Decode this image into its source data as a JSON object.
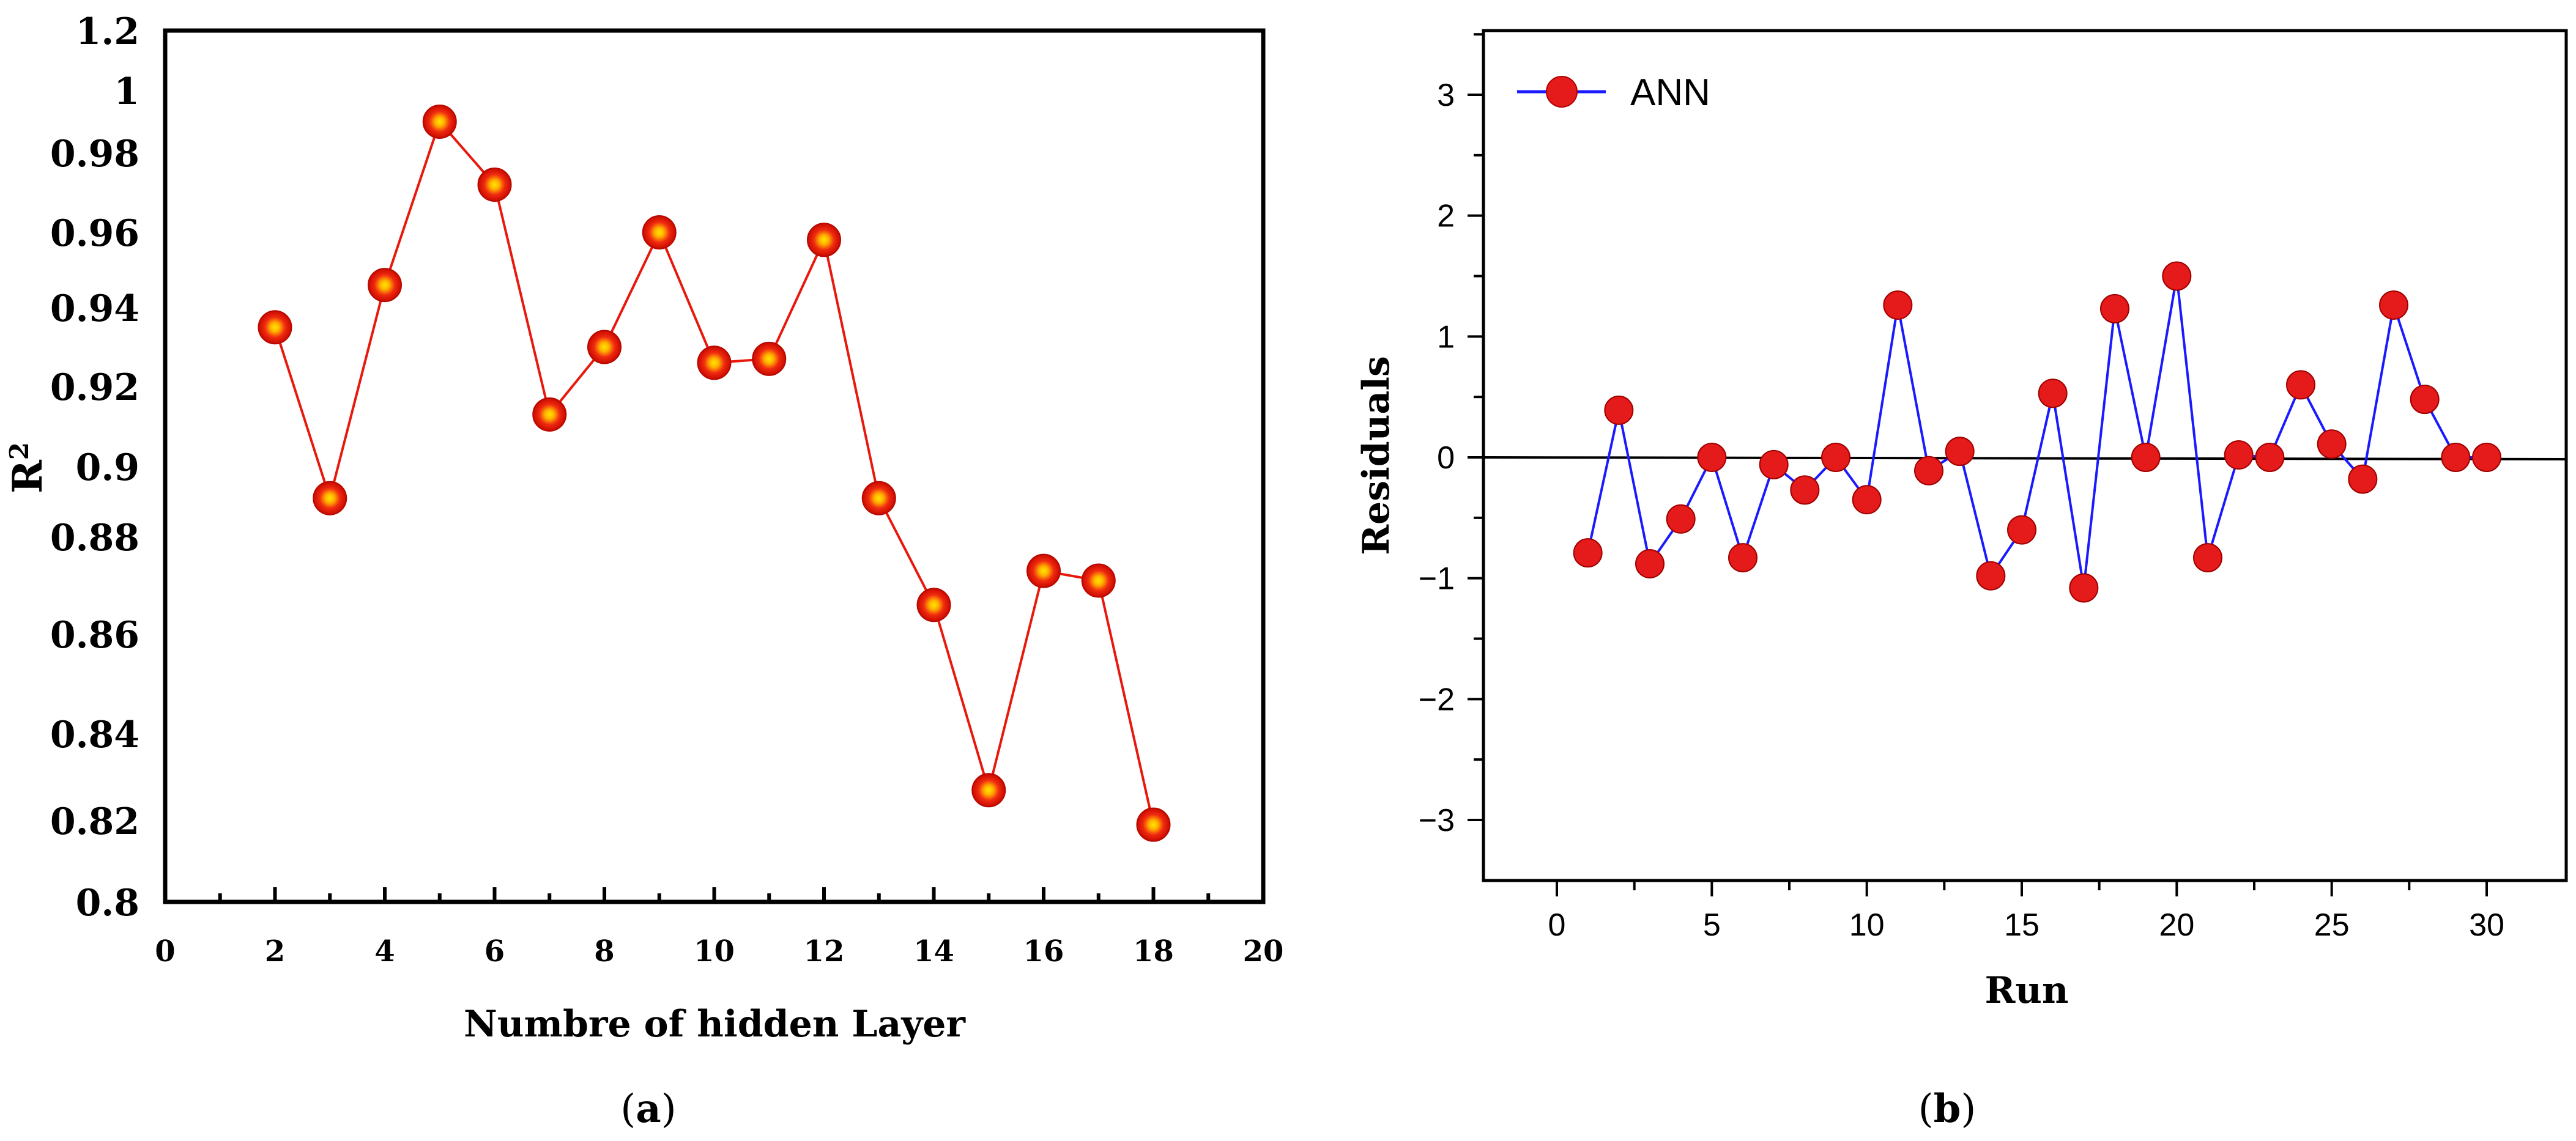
{
  "colors": {
    "panel_a_line": "#e8180c",
    "panel_a_marker": "#e8180c",
    "panel_a_highlight": "#ffd400",
    "panel_b_line": "#1a1aff",
    "panel_b_marker": "#e51a1a",
    "axis": "#000000"
  },
  "chart_data": [
    {
      "panel_label": "(a)",
      "panel_letter": "a",
      "type": "line",
      "title": "",
      "xlabel": "Numbre of hidden Layer",
      "ylabel_main": "R",
      "ylabel_sup": "2",
      "xlim": [
        0,
        20
      ],
      "ylim": [
        0.8,
        1.2
      ],
      "x_ticks": [
        "0",
        "2",
        "4",
        "6",
        "8",
        "10",
        "12",
        "14",
        "16",
        "18",
        "20"
      ],
      "y_tick_labels": [
        "0.8",
        "0.82",
        "0.84",
        "0.86",
        "0.88",
        "0.9",
        "0.92",
        "0.94",
        "0.96",
        "0.98",
        "1",
        "1.2"
      ],
      "x": [
        2,
        3,
        4,
        5,
        6,
        7,
        8,
        9,
        10,
        11,
        12,
        13,
        14,
        15,
        16,
        17,
        18
      ],
      "series": [
        {
          "name": "R2",
          "values": [
            0.935,
            0.891,
            0.946,
            0.99,
            0.972,
            0.913,
            0.93,
            0.96,
            0.926,
            0.927,
            0.958,
            0.891,
            0.866,
            0.827,
            0.873,
            0.871,
            0.819
          ]
        }
      ]
    },
    {
      "panel_label": "(b)",
      "panel_letter": "b",
      "type": "line",
      "title": "",
      "xlabel": "Run",
      "ylabel": "Residuals",
      "xlim": [
        -3,
        32
      ],
      "ylim": [
        -3.5,
        3.5
      ],
      "x_ticks": [
        0,
        5,
        10,
        15,
        20,
        25,
        30
      ],
      "y_ticks": [
        -3,
        -2,
        -1,
        0,
        1,
        2,
        3
      ],
      "y_tick_labels": [
        "−3",
        "−2",
        "−1",
        "0",
        "1",
        "2",
        "3"
      ],
      "zero_line": true,
      "legend": {
        "label": "ANN",
        "position": "top-left"
      },
      "x": [
        1,
        2,
        3,
        4,
        5,
        6,
        7,
        8,
        9,
        10,
        11,
        12,
        13,
        14,
        15,
        16,
        17,
        18,
        19,
        20,
        21,
        22,
        23,
        24,
        25,
        26,
        27,
        28,
        29,
        30
      ],
      "series": [
        {
          "name": "ANN",
          "values": [
            -0.79,
            0.39,
            -0.88,
            -0.51,
            0.0,
            -0.83,
            -0.06,
            -0.27,
            0.0,
            -0.35,
            1.26,
            -0.11,
            0.05,
            -0.98,
            -0.6,
            0.53,
            -1.08,
            1.23,
            0.0,
            1.5,
            -0.83,
            0.02,
            0.0,
            0.6,
            0.11,
            -0.18,
            1.26,
            0.48,
            0.0,
            0.0
          ]
        }
      ]
    }
  ]
}
